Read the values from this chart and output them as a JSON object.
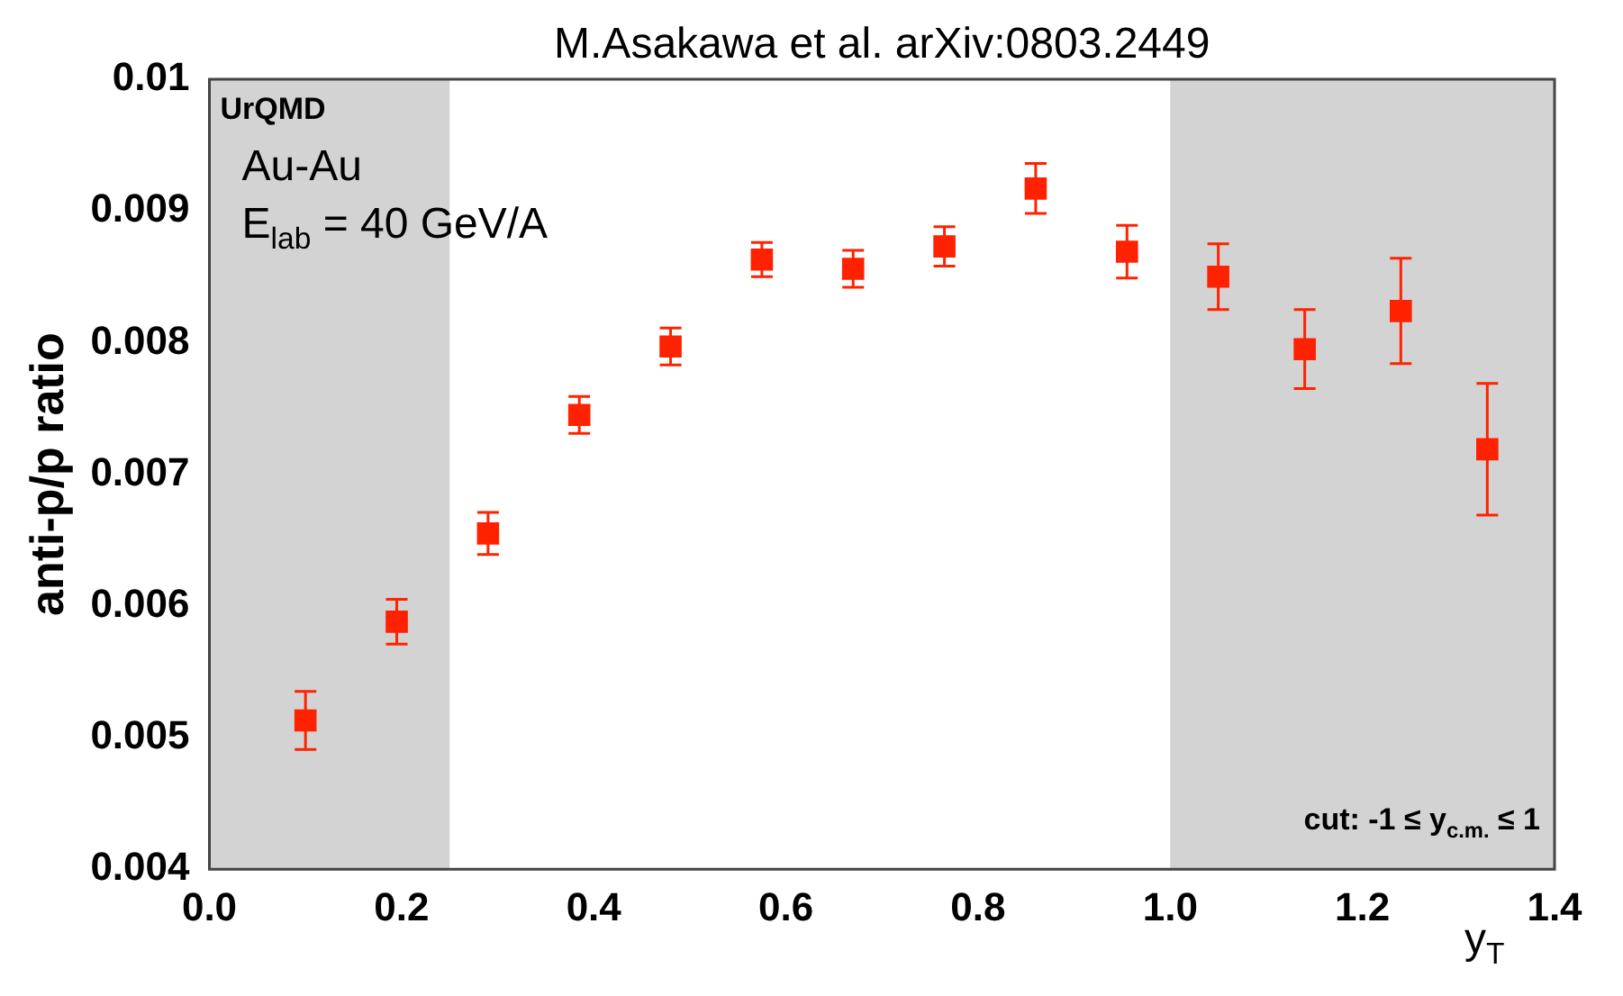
{
  "chart_data": {
    "type": "scatter",
    "title": "M.Asakawa et al. arXiv:0803.2449",
    "xlabel": "y$_{T}$",
    "ylabel": "anti-p/p ratio",
    "annotations": [
      "UrQMD",
      "Au-Au",
      "E$_{lab}$ = 40 GeV/A",
      "cut: -1 ≤ y$_{c.m.}$ ≤ 1"
    ],
    "x": [
      0.1,
      0.195,
      0.29,
      0.385,
      0.48,
      0.575,
      0.67,
      0.765,
      0.86,
      0.955,
      1.05,
      1.14,
      1.24,
      1.33
    ],
    "series": [
      {
        "color": "#ff2200",
        "values": [
          0.00513,
          0.00588,
          0.00655,
          0.00745,
          0.00797,
          0.00863,
          0.00856,
          0.00873,
          0.00917,
          0.00869,
          0.0085,
          0.00795,
          0.00824,
          0.00719
        ],
        "errors": [
          0.00022,
          0.00017,
          0.00016,
          0.00014,
          0.00014,
          0.00013,
          0.00014,
          0.00015,
          0.00019,
          0.0002,
          0.00025,
          0.0003,
          0.0004,
          0.0005
        ]
      }
    ],
    "bands": [
      {
        "axis": "x",
        "from": 0,
        "to": 0.25,
        "color": "#d3d3d3"
      },
      {
        "axis": "x",
        "from": 1.0,
        "to": 1.4,
        "color": "#d3d3d3"
      }
    ],
    "xlim": [
      0,
      1.4
    ],
    "ylim": [
      0.004,
      0.01
    ],
    "xticks": [
      {
        "value": 0,
        "label": "0.0"
      },
      {
        "value": 0.2,
        "label": "0.2"
      },
      {
        "value": 0.4,
        "label": "0.4"
      },
      {
        "value": 0.6,
        "label": "0.6"
      },
      {
        "value": 0.8,
        "label": "0.8"
      },
      {
        "value": 1.0,
        "label": "1.0"
      },
      {
        "value": 1.2,
        "label": "1.2"
      },
      {
        "value": 1.4,
        "label": "1.4"
      }
    ],
    "yticks": [
      0.004,
      0.005,
      0.006,
      0.007,
      0.008,
      0.009,
      0.01
    ],
    "grid": false,
    "legend": false,
    "marker": "square"
  }
}
